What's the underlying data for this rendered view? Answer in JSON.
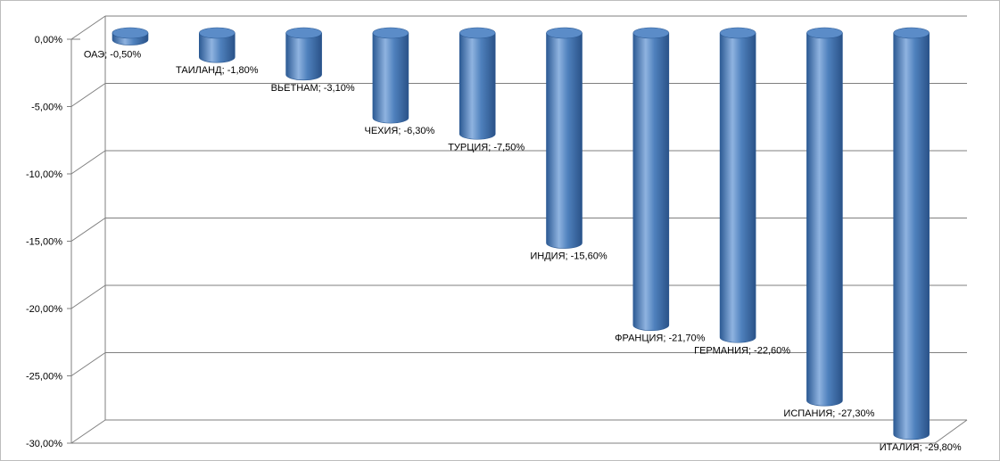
{
  "chart_data": {
    "type": "bar",
    "title": "",
    "xlabel": "",
    "ylabel": "",
    "categories": [
      "ОАЭ",
      "ТАИЛАНД",
      "ВЬЕТНАМ",
      "ЧЕХИЯ",
      "ТУРЦИЯ",
      "ИНДИЯ",
      "ФРАНЦИЯ",
      "ГЕРМАНИЯ",
      "ИСПАНИЯ",
      "ИТАЛИЯ"
    ],
    "values": [
      -0.5,
      -1.8,
      -3.1,
      -6.3,
      -7.5,
      -15.6,
      -21.7,
      -22.6,
      -27.3,
      -29.8
    ],
    "data_labels": [
      "ОАЭ; -0,50%",
      "ТАИЛАНД; -1,80%",
      "ВЬЕТНАМ; -3,10%",
      "ЧЕХИЯ; -6,30%",
      "ТУРЦИЯ; -7,50%",
      "ИНДИЯ; -15,60%",
      "ФРАНЦИЯ; -21,70%",
      "ГЕРМАНИЯ; -22,60%",
      "ИСПАНИЯ; -27,30%",
      "ИТАЛИЯ; -29,80%"
    ],
    "yticks": [
      0,
      -5,
      -10,
      -15,
      -20,
      -25,
      -30
    ],
    "ytick_labels": [
      "0,00%",
      "-5,00%",
      "-10,00%",
      "-15,00%",
      "-20,00%",
      "-25,00%",
      "-30,00%"
    ],
    "ylim": [
      -30,
      0
    ],
    "grid": true,
    "legend": "none",
    "bar_style": "3d-cylinder",
    "colors": {
      "bar": "#4f81bd",
      "bar_dark": "#2c5a94",
      "bar_light": "#8fb3e0",
      "grid": "#7f7f7f"
    }
  }
}
